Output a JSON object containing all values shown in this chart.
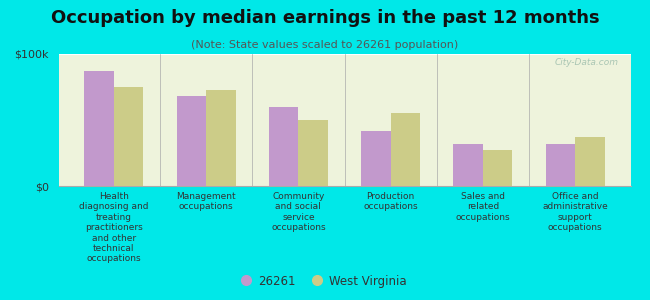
{
  "title": "Occupation by median earnings in the past 12 months",
  "subtitle": "(Note: State values scaled to 26261 population)",
  "categories": [
    "Health\ndiagnosing and\ntreating\npractitioners\nand other\ntechnical\noccupations",
    "Management\noccupations",
    "Community\nand social\nservice\noccupations",
    "Production\noccupations",
    "Sales and\nrelated\noccupations",
    "Office and\nadministrative\nsupport\noccupations"
  ],
  "values_26261": [
    87000,
    68000,
    60000,
    42000,
    32000,
    32000
  ],
  "values_wv": [
    75000,
    73000,
    50000,
    55000,
    27000,
    37000
  ],
  "color_26261": "#c299cc",
  "color_wv": "#cccc88",
  "ylim": [
    0,
    100000
  ],
  "ytick_labels": [
    "$0",
    "$100k"
  ],
  "background_color": "#00e8e8",
  "plot_bg": "#eef3dc",
  "legend_label_26261": "26261",
  "legend_label_wv": "West Virginia",
  "watermark": "City-Data.com",
  "title_fontsize": 13,
  "subtitle_fontsize": 8,
  "bar_width": 0.32
}
